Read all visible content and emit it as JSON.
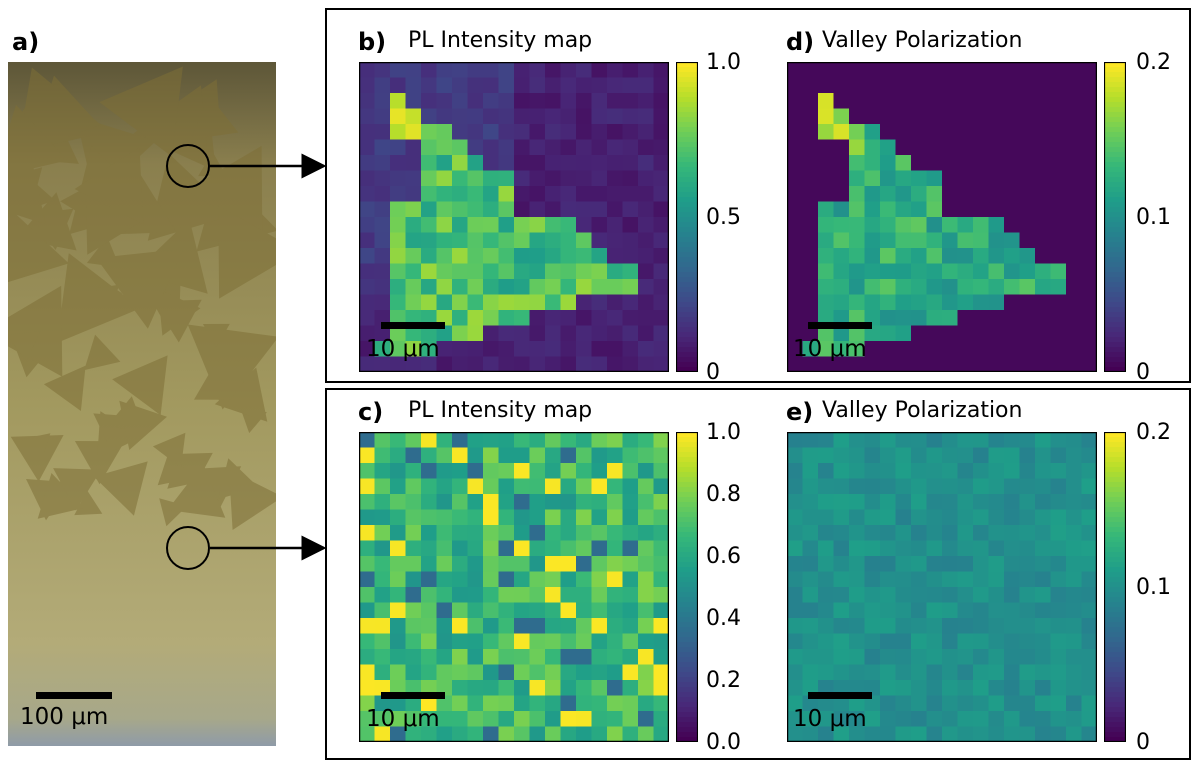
{
  "panels": {
    "a": {
      "letter": "a)",
      "scale_label": "100 μm"
    },
    "b": {
      "letter": "b)",
      "title": "PL Intensity map",
      "scale_label": "10 μm",
      "cbar_ticks": [
        "1.0",
        "0.5",
        "0"
      ]
    },
    "d": {
      "letter": "d)",
      "title": "Valley Polarization",
      "scale_label": "10 μm",
      "cbar_ticks": [
        "0.2",
        "0.1",
        "0"
      ]
    },
    "c": {
      "letter": "c)",
      "title": "PL Intensity map",
      "scale_label": "10 μm",
      "cbar_ticks": [
        "1.0",
        "0.8",
        "0.6",
        "0.4",
        "0.2",
        "0.0"
      ]
    },
    "e": {
      "letter": "e)",
      "title": "Valley Polarization",
      "scale_label": "10 μm",
      "cbar_ticks": [
        "0.2",
        "0.1",
        "0"
      ]
    }
  },
  "colors": {
    "viridis": [
      "#440154",
      "#482878",
      "#3e4a89",
      "#31688e",
      "#26828e",
      "#1f9e89",
      "#35b779",
      "#6ece58",
      "#b5de2b",
      "#fde725"
    ],
    "substrate": "#a59b62",
    "flake": "#8c7a3a",
    "frame": "#000000"
  },
  "chart_data": [
    {
      "type": "heatmap",
      "panel": "b",
      "title": "PL Intensity map",
      "grid": [
        20,
        20
      ],
      "colorbar": {
        "min": 0,
        "max": 1.0,
        "ticks": [
          0,
          0.5,
          1.0
        ]
      },
      "scale_bar": "10 μm"
    },
    {
      "type": "heatmap",
      "panel": "d",
      "title": "Valley Polarization",
      "grid": [
        20,
        20
      ],
      "colorbar": {
        "min": 0,
        "max": 0.2,
        "ticks": [
          0,
          0.1,
          0.2
        ]
      },
      "scale_bar": "10 μm"
    },
    {
      "type": "heatmap",
      "panel": "c",
      "title": "PL Intensity map",
      "grid": [
        20,
        20
      ],
      "colorbar": {
        "min": 0.0,
        "max": 1.0,
        "ticks": [
          0.0,
          0.2,
          0.4,
          0.6,
          0.8,
          1.0
        ]
      },
      "scale_bar": "10 μm"
    },
    {
      "type": "heatmap",
      "panel": "e",
      "title": "Valley Polarization",
      "grid": [
        20,
        20
      ],
      "colorbar": {
        "min": 0,
        "max": 0.2,
        "ticks": [
          0,
          0.1,
          0.2
        ]
      },
      "scale_bar": "10 μm"
    }
  ]
}
